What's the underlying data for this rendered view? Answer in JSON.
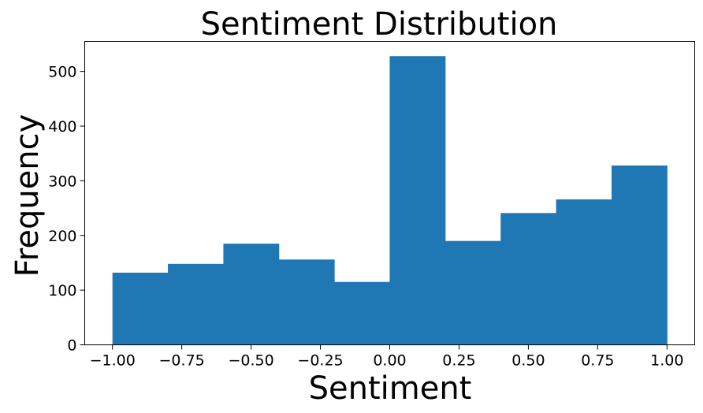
{
  "chart_data": {
    "type": "bar",
    "title": "Sentiment Distribution",
    "xlabel": "Sentiment",
    "ylabel": "Frequency",
    "bin_edges": [
      -1.0,
      -0.8,
      -0.6,
      -0.4,
      -0.2,
      0.0,
      0.2,
      0.4,
      0.6,
      0.8,
      1.0
    ],
    "values": [
      132,
      148,
      185,
      156,
      115,
      528,
      190,
      241,
      266,
      328
    ],
    "xlim": [
      -1.1,
      1.1
    ],
    "ylim": [
      0,
      555
    ],
    "xticks": [
      -1.0,
      -0.75,
      -0.5,
      -0.25,
      0.0,
      0.25,
      0.5,
      0.75,
      1.0
    ],
    "xtick_labels": [
      "−1.00",
      "−0.75",
      "−0.50",
      "−0.25",
      "0.00",
      "0.25",
      "0.50",
      "0.75",
      "1.00"
    ],
    "yticks": [
      0,
      100,
      200,
      300,
      400,
      500
    ],
    "ytick_labels": [
      "0",
      "100",
      "200",
      "300",
      "400",
      "500"
    ],
    "bar_color": "#1f77b4",
    "grid": false,
    "legend": false
  }
}
